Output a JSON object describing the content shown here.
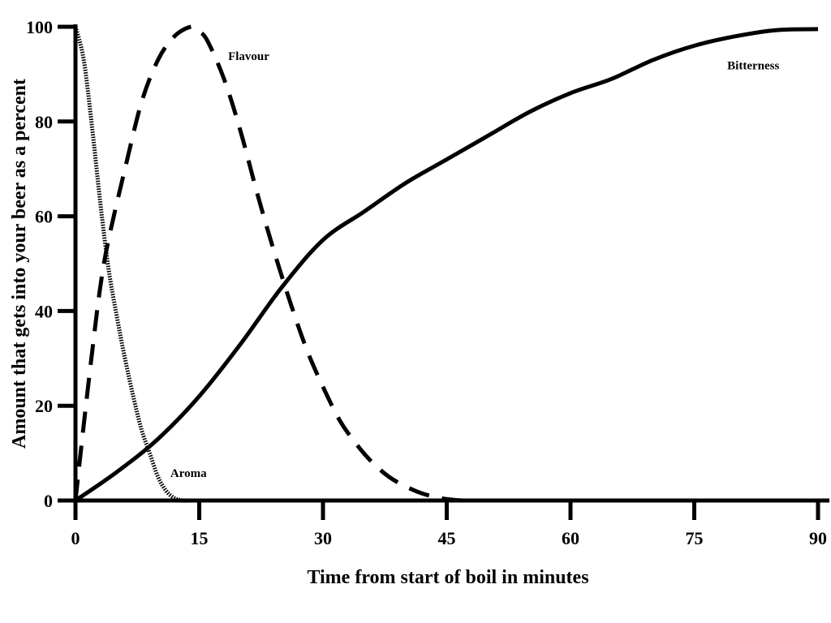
{
  "chart_data": {
    "type": "line",
    "xlabel": "Time from start of boil in minutes",
    "ylabel": "Amount that gets into your beer as a percent",
    "xlim": [
      0,
      90
    ],
    "ylim": [
      0,
      100
    ],
    "xticks": [
      0,
      15,
      30,
      45,
      60,
      75,
      90
    ],
    "yticks": [
      0,
      20,
      40,
      60,
      80,
      100
    ],
    "grid": false,
    "legend": "none",
    "series": [
      {
        "name": "Aroma",
        "style": "dotted",
        "x": [
          0,
          1,
          2,
          3,
          4,
          5,
          6,
          7,
          8,
          9,
          10,
          11,
          12,
          13,
          14
        ],
        "y": [
          100,
          93,
          79,
          63,
          49,
          39,
          30,
          22,
          15,
          10,
          5,
          2,
          0.5,
          0,
          0
        ]
      },
      {
        "name": "Flavour",
        "style": "dashed",
        "x": [
          0,
          1,
          2,
          3,
          4,
          6,
          8,
          10,
          12,
          14,
          15,
          16,
          18,
          20,
          22,
          24,
          26,
          28,
          30,
          32,
          34,
          36,
          38,
          40,
          42,
          44,
          45,
          46,
          47
        ],
        "y": [
          0,
          16,
          31,
          45,
          55,
          70,
          84,
          93,
          98,
          100,
          99,
          97,
          89,
          78,
          65,
          53,
          42,
          32,
          24,
          17,
          12,
          8,
          5,
          3,
          1.5,
          0.6,
          0.3,
          0.1,
          0
        ]
      },
      {
        "name": "Bitterness",
        "style": "solid",
        "x": [
          0,
          5,
          10,
          15,
          20,
          25,
          30,
          35,
          40,
          45,
          50,
          55,
          60,
          65,
          70,
          75,
          80,
          85,
          90
        ],
        "y": [
          0,
          6,
          13,
          22,
          33,
          45,
          55,
          61,
          67,
          72,
          77,
          82,
          86,
          89,
          93,
          96,
          98,
          99.3,
          99.5
        ]
      }
    ],
    "series_labels": [
      {
        "text": "Flavour",
        "x": 18.5,
        "y": 93
      },
      {
        "text": "Aroma",
        "x": 11.5,
        "y": 5
      },
      {
        "text": "Bitterness",
        "x": 79,
        "y": 91
      }
    ]
  }
}
